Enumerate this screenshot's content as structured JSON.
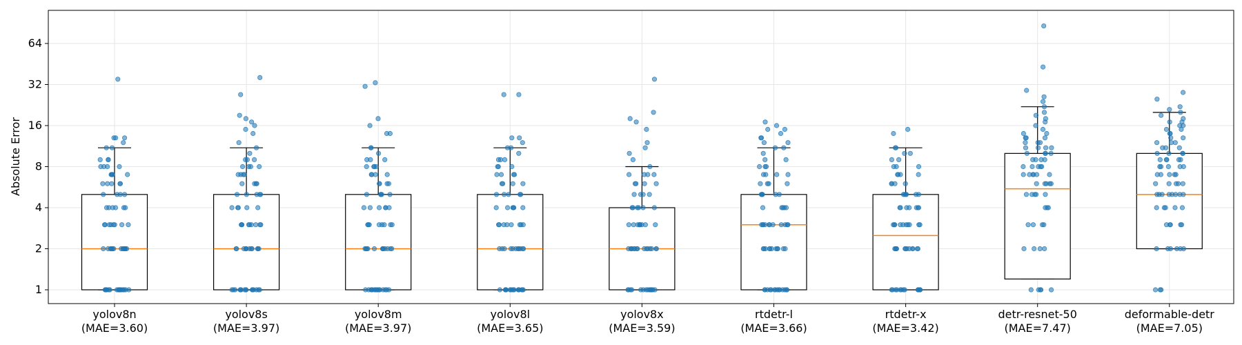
{
  "chart_data": {
    "type": "box",
    "title": "",
    "xlabel": "",
    "ylabel": "Absolute Error",
    "yscale": "log2",
    "ylim": [
      0.84,
      105
    ],
    "yticks": [
      1,
      2,
      4,
      8,
      16,
      32,
      64
    ],
    "ytick_labels": [
      "1",
      "2",
      "4",
      "8",
      "16",
      "32",
      "64"
    ],
    "grid": true,
    "legend": "none",
    "colors": {
      "box": "#000000",
      "median": "#ff7f0e",
      "points": "#1f77b4",
      "grid": "#e6e6e6"
    },
    "categories": [
      {
        "name": "yolov8n",
        "mae_label": "(MAE=3.60)",
        "whislo": 1,
        "q1": 1,
        "median": 2,
        "q3": 5,
        "whishi": 11,
        "points": [
          1,
          1,
          1,
          1,
          1,
          1,
          1,
          1,
          1,
          1,
          1,
          1,
          1,
          1,
          1,
          1,
          1,
          2,
          2,
          2,
          2,
          2,
          2,
          2,
          2,
          2,
          2,
          2,
          2,
          2,
          2,
          3,
          3,
          3,
          3,
          3,
          3,
          3,
          3,
          4,
          4,
          4,
          4,
          4,
          4,
          5,
          5,
          5,
          5,
          6,
          6,
          6,
          6,
          6,
          7,
          7,
          7,
          7,
          7,
          8,
          8,
          8,
          8,
          9,
          9,
          9,
          11,
          11,
          12,
          13,
          13,
          13,
          35
        ]
      },
      {
        "name": "yolov8s",
        "mae_label": "(MAE=3.97)",
        "whislo": 1,
        "q1": 1,
        "median": 2,
        "q3": 5,
        "whishi": 11,
        "points": [
          1,
          1,
          1,
          1,
          1,
          1,
          1,
          1,
          1,
          1,
          1,
          1,
          1,
          1,
          1,
          2,
          2,
          2,
          2,
          2,
          2,
          2,
          2,
          2,
          2,
          2,
          2,
          3,
          3,
          3,
          3,
          3,
          3,
          3,
          3,
          3,
          4,
          4,
          4,
          4,
          4,
          5,
          5,
          5,
          5,
          5,
          6,
          6,
          6,
          6,
          7,
          7,
          7,
          7,
          8,
          8,
          8,
          8,
          9,
          9,
          9,
          10,
          11,
          12,
          14,
          15,
          16,
          17,
          18,
          19,
          27,
          36
        ]
      },
      {
        "name": "yolov8m",
        "mae_label": "(MAE=3.97)",
        "whislo": 1,
        "q1": 1,
        "median": 2,
        "q3": 5,
        "whishi": 11,
        "points": [
          1,
          1,
          1,
          1,
          1,
          1,
          1,
          1,
          1,
          1,
          1,
          1,
          1,
          1,
          1,
          2,
          2,
          2,
          2,
          2,
          2,
          2,
          2,
          2,
          2,
          2,
          2,
          3,
          3,
          3,
          3,
          3,
          3,
          3,
          3,
          4,
          4,
          4,
          4,
          4,
          4,
          5,
          5,
          5,
          5,
          5,
          6,
          6,
          6,
          6,
          7,
          7,
          7,
          7,
          8,
          8,
          8,
          8,
          9,
          9,
          9,
          10,
          11,
          11,
          14,
          14,
          16,
          18,
          31,
          33
        ]
      },
      {
        "name": "yolov8l",
        "mae_label": "(MAE=3.65)",
        "whislo": 1,
        "q1": 1,
        "median": 2,
        "q3": 5,
        "whishi": 11,
        "points": [
          1,
          1,
          1,
          1,
          1,
          1,
          1,
          1,
          1,
          1,
          1,
          1,
          1,
          1,
          1,
          1,
          2,
          2,
          2,
          2,
          2,
          2,
          2,
          2,
          2,
          2,
          2,
          3,
          3,
          3,
          3,
          3,
          3,
          3,
          3,
          4,
          4,
          4,
          4,
          4,
          4,
          5,
          5,
          5,
          5,
          5,
          6,
          6,
          6,
          6,
          7,
          7,
          7,
          7,
          8,
          8,
          8,
          9,
          9,
          9,
          10,
          11,
          11,
          12,
          13,
          13,
          27,
          27
        ]
      },
      {
        "name": "yolov8x",
        "mae_label": "(MAE=3.59)",
        "whislo": 1,
        "q1": 1,
        "median": 2,
        "q3": 4,
        "whishi": 8,
        "points": [
          1,
          1,
          1,
          1,
          1,
          1,
          1,
          1,
          1,
          1,
          1,
          1,
          1,
          1,
          2,
          2,
          2,
          2,
          2,
          2,
          2,
          2,
          2,
          2,
          2,
          2,
          2,
          2,
          2,
          3,
          3,
          3,
          3,
          3,
          3,
          3,
          3,
          3,
          4,
          4,
          4,
          4,
          4,
          4,
          5,
          5,
          5,
          5,
          6,
          6,
          6,
          6,
          7,
          7,
          7,
          7,
          8,
          9,
          10,
          11,
          12,
          15,
          17,
          18,
          20,
          35
        ]
      },
      {
        "name": "rtdetr-l",
        "mae_label": "(MAE=3.66)",
        "whislo": 1,
        "q1": 1,
        "median": 3,
        "q3": 5,
        "whishi": 11,
        "points": [
          1,
          1,
          1,
          1,
          1,
          1,
          1,
          1,
          1,
          1,
          1,
          1,
          1,
          1,
          2,
          2,
          2,
          2,
          2,
          2,
          2,
          2,
          2,
          2,
          2,
          3,
          3,
          3,
          3,
          3,
          3,
          3,
          3,
          3,
          3,
          3,
          4,
          4,
          4,
          4,
          4,
          5,
          5,
          5,
          5,
          5,
          5,
          6,
          6,
          6,
          6,
          7,
          7,
          7,
          7,
          8,
          8,
          8,
          9,
          9,
          10,
          11,
          11,
          12,
          12,
          13,
          13,
          14,
          15,
          15,
          16,
          17
        ]
      },
      {
        "name": "rtdetr-x",
        "mae_label": "(MAE=3.42)",
        "whislo": 1,
        "q1": 1,
        "median": 2.5,
        "q3": 5,
        "whishi": 11,
        "points": [
          1,
          1,
          1,
          1,
          1,
          1,
          1,
          1,
          1,
          1,
          1,
          1,
          1,
          1,
          2,
          2,
          2,
          2,
          2,
          2,
          2,
          2,
          2,
          2,
          2,
          2,
          3,
          3,
          3,
          3,
          3,
          3,
          3,
          3,
          3,
          3,
          4,
          4,
          4,
          4,
          4,
          4,
          4,
          5,
          5,
          5,
          5,
          5,
          5,
          6,
          6,
          6,
          6,
          7,
          7,
          7,
          7,
          8,
          8,
          8,
          9,
          9,
          10,
          10,
          11,
          11,
          14,
          15
        ]
      },
      {
        "name": "detr-resnet-50",
        "mae_label": "(MAE=7.47)",
        "whislo": 1.2,
        "q1": 1.2,
        "median": 5.5,
        "q3": 10,
        "whishi": 22,
        "points": [
          1,
          1,
          1,
          1,
          1,
          2,
          2,
          2,
          2,
          3,
          3,
          3,
          3,
          4,
          4,
          4,
          5,
          5,
          5,
          5,
          5,
          6,
          6,
          6,
          6,
          6,
          7,
          7,
          7,
          7,
          7,
          7,
          8,
          8,
          8,
          8,
          8,
          9,
          9,
          9,
          9,
          10,
          10,
          10,
          10,
          11,
          11,
          11,
          11,
          12,
          12,
          12,
          13,
          13,
          13,
          14,
          14,
          15,
          16,
          17,
          18,
          19,
          20,
          22,
          24,
          26,
          29,
          43,
          86
        ]
      },
      {
        "name": "deformable-detr",
        "mae_label": "(MAE=7.05)",
        "whislo": 2,
        "q1": 2,
        "median": 5,
        "q3": 10,
        "whishi": 20,
        "points": [
          1,
          1,
          1,
          2,
          2,
          2,
          2,
          2,
          2,
          3,
          3,
          3,
          3,
          3,
          4,
          4,
          4,
          4,
          4,
          5,
          5,
          5,
          5,
          5,
          5,
          5,
          5,
          6,
          6,
          6,
          6,
          6,
          7,
          7,
          7,
          7,
          7,
          8,
          8,
          8,
          8,
          8,
          9,
          9,
          9,
          9,
          9,
          10,
          10,
          10,
          10,
          11,
          11,
          11,
          12,
          12,
          12,
          13,
          13,
          14,
          14,
          15,
          15,
          16,
          16,
          17,
          17,
          18,
          19,
          20,
          21,
          22,
          25,
          28
        ]
      }
    ]
  }
}
